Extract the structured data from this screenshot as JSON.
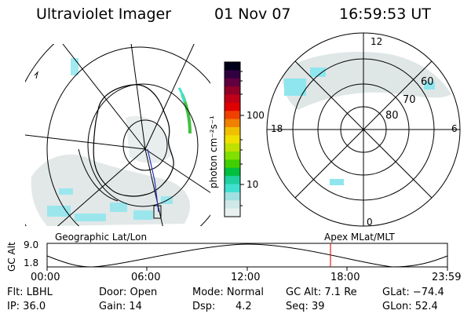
{
  "header": {
    "title": "Ultraviolet Imager",
    "date": "01 Nov 07",
    "time": "16:59:53 UT"
  },
  "colorbar": {
    "unit_label": "photon cm⁻²s⁻¹",
    "tick_labels": [
      "100",
      "10"
    ],
    "colors": [
      "#000018",
      "#300040",
      "#600040",
      "#900028",
      "#c00018",
      "#e00000",
      "#f04000",
      "#f08000",
      "#f0c000",
      "#f0e000",
      "#c0e000",
      "#80e000",
      "#40d000",
      "#00c040",
      "#20d0a0",
      "#40e0d0",
      "#a0e0e0",
      "#d0e8e8",
      "#e8f0f0"
    ]
  },
  "left_map": {
    "label": "Geographic Lat/Lon"
  },
  "right_map": {
    "label": "Apex MLat/MLT",
    "mlt_labels": {
      "top": "12",
      "right": "6",
      "bottom": "0",
      "left": "18"
    },
    "lat_labels": [
      "60",
      "70",
      "80"
    ]
  },
  "altitude_plot": {
    "y_axis_label": "GC Alt",
    "y_ticks": [
      "9.0",
      "1.8"
    ],
    "x_ticks": [
      "00:00",
      "06:00",
      "12:00",
      "18:00",
      "23:59"
    ],
    "marker_time": "16:59:53",
    "marker_color": "#e02020"
  },
  "status": {
    "filter": "Flt: LBHL",
    "ip": "IP: 36.0",
    "door": "Door: Open",
    "gain": "Gain: 14",
    "mode": "Mode: Normal",
    "dsp_label": "Dsp:",
    "dsp_value": "4.2",
    "gc_alt": "GC Alt: 7.1 Re",
    "seq": "Seq: 39",
    "glat": "GLat: −74.4",
    "glon": "GLon:  52.4"
  }
}
